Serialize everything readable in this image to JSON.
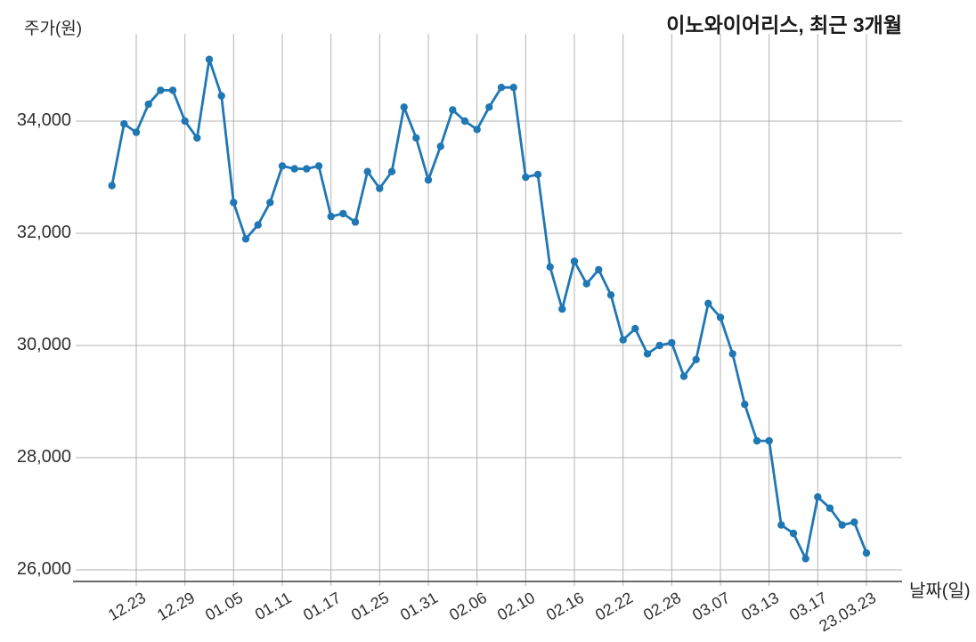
{
  "page": {
    "title": "이노와이어리스, 최근 3개월"
  },
  "axes": {
    "y_label": "주가(원)",
    "x_label": "날짜(일)"
  },
  "chart_data": {
    "type": "line",
    "title": "이노와이어리스, 최근 3개월",
    "xlabel": "날짜(일)",
    "ylabel": "주가(원)",
    "x_tick_labels": [
      "12.23",
      "12.29",
      "01.05",
      "01.11",
      "01.17",
      "01.25",
      "01.31",
      "02.06",
      "02.10",
      "02.16",
      "02.22",
      "02.28",
      "03.07",
      "03.13",
      "03.17",
      "23.03.23"
    ],
    "x_tick_point_indices": [
      2,
      6,
      10,
      14,
      18,
      22,
      26,
      30,
      34,
      38,
      42,
      46,
      50,
      54,
      58,
      62
    ],
    "values": [
      32850,
      33950,
      33800,
      34300,
      34550,
      34550,
      34000,
      33700,
      35100,
      34450,
      32550,
      31900,
      32150,
      32550,
      33200,
      33150,
      33150,
      33200,
      32300,
      32350,
      32200,
      33100,
      32800,
      33100,
      34250,
      33700,
      32950,
      33550,
      34200,
      34000,
      33850,
      34250,
      34600,
      34600,
      33000,
      33050,
      31400,
      30650,
      31500,
      31100,
      31350,
      30900,
      30100,
      30300,
      29850,
      30000,
      30050,
      29450,
      29750,
      30750,
      30500,
      29850,
      28950,
      28300,
      28300,
      26800,
      26650,
      26200,
      27300,
      27100,
      26800,
      26850,
      26300
    ],
    "y_ticks": [
      26000,
      28000,
      30000,
      32000,
      34000
    ],
    "y_tick_labels": [
      "26,000",
      "28,000",
      "30,000",
      "32,000",
      "34,000"
    ],
    "ylim": [
      25800,
      35560
    ],
    "grid": true,
    "legend_position": "none",
    "marker": "circle",
    "line_color": "#1f77b4",
    "grid_color": "#b3b3b3",
    "axis_color": "#3c3c3c",
    "text_color": "#303030"
  }
}
